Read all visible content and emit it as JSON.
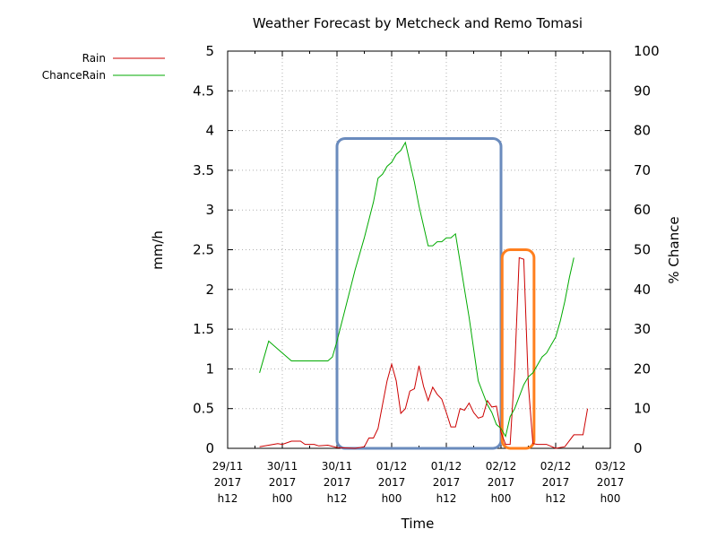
{
  "chart_data": {
    "type": "line",
    "title": "Weather Forecast by Metcheck and Remo Tomasi",
    "xlabel": "Time",
    "ylabel": "mm/h",
    "y2label": "% Chance",
    "ylim": [
      0,
      5
    ],
    "y2lim": [
      0,
      100
    ],
    "yticks": [
      "0",
      "0.5",
      "1",
      "1.5",
      "2",
      "2.5",
      "3",
      "3.5",
      "4",
      "4.5",
      "5"
    ],
    "y2ticks": [
      "0",
      "10",
      "20",
      "30",
      "40",
      "50",
      "60",
      "70",
      "80",
      "90",
      "100"
    ],
    "xlim": [
      "2017-11-29 12:00",
      "2017-12-03 00:00"
    ],
    "xticks": [
      {
        "date": "2017-11-29 12:00",
        "label": [
          "29/11",
          "2017",
          "h12"
        ]
      },
      {
        "date": "2017-11-30 00:00",
        "label": [
          "30/11",
          "2017",
          "h00"
        ]
      },
      {
        "date": "2017-11-30 12:00",
        "label": [
          "30/11",
          "2017",
          "h12"
        ]
      },
      {
        "date": "2017-12-01 00:00",
        "label": [
          "01/12",
          "2017",
          "h00"
        ]
      },
      {
        "date": "2017-12-01 12:00",
        "label": [
          "01/12",
          "2017",
          "h12"
        ]
      },
      {
        "date": "2017-12-02 00:00",
        "label": [
          "02/12",
          "2017",
          "h00"
        ]
      },
      {
        "date": "2017-12-02 12:00",
        "label": [
          "02/12",
          "2017",
          "h12"
        ]
      },
      {
        "date": "2017-12-03 00:00",
        "label": [
          "03/12",
          "2017",
          "h00"
        ]
      }
    ],
    "grid": true,
    "legend_position": "top-left",
    "series": [
      {
        "name": "Rain",
        "axis": "left",
        "color": "#cc0000",
        "points": [
          [
            "2017-11-29 19:00",
            0.02
          ],
          [
            "2017-11-29 21:00",
            0.04
          ],
          [
            "2017-11-29 23:00",
            0.06
          ],
          [
            "2017-11-30 00:00",
            0.05
          ],
          [
            "2017-11-30 02:00",
            0.09
          ],
          [
            "2017-11-30 04:00",
            0.09
          ],
          [
            "2017-11-30 05:00",
            0.05
          ],
          [
            "2017-11-30 07:00",
            0.05
          ],
          [
            "2017-11-30 08:00",
            0.03
          ],
          [
            "2017-11-30 10:00",
            0.04
          ],
          [
            "2017-11-30 12:00",
            0.01
          ],
          [
            "2017-11-30 16:00",
            0.0
          ],
          [
            "2017-11-30 18:00",
            0.02
          ],
          [
            "2017-11-30 19:00",
            0.13
          ],
          [
            "2017-11-30 20:00",
            0.13
          ],
          [
            "2017-11-30 21:00",
            0.25
          ],
          [
            "2017-11-30 22:00",
            0.55
          ],
          [
            "2017-11-30 23:00",
            0.85
          ],
          [
            "2017-12-01 00:00",
            1.06
          ],
          [
            "2017-12-01 01:00",
            0.85
          ],
          [
            "2017-12-01 02:00",
            0.44
          ],
          [
            "2017-12-01 03:00",
            0.5
          ],
          [
            "2017-12-01 04:00",
            0.72
          ],
          [
            "2017-12-01 05:00",
            0.75
          ],
          [
            "2017-12-01 06:00",
            1.04
          ],
          [
            "2017-12-01 07:00",
            0.78
          ],
          [
            "2017-12-01 08:00",
            0.6
          ],
          [
            "2017-12-01 09:00",
            0.77
          ],
          [
            "2017-12-01 10:00",
            0.68
          ],
          [
            "2017-12-01 11:00",
            0.62
          ],
          [
            "2017-12-01 12:00",
            0.45
          ],
          [
            "2017-12-01 13:00",
            0.27
          ],
          [
            "2017-12-01 14:00",
            0.27
          ],
          [
            "2017-12-01 15:00",
            0.5
          ],
          [
            "2017-12-01 16:00",
            0.48
          ],
          [
            "2017-12-01 17:00",
            0.57
          ],
          [
            "2017-12-01 18:00",
            0.45
          ],
          [
            "2017-12-01 19:00",
            0.38
          ],
          [
            "2017-12-01 20:00",
            0.4
          ],
          [
            "2017-12-01 21:00",
            0.6
          ],
          [
            "2017-12-01 22:00",
            0.52
          ],
          [
            "2017-12-01 23:00",
            0.53
          ],
          [
            "2017-12-02 00:00",
            0.2
          ],
          [
            "2017-12-02 01:00",
            0.05
          ],
          [
            "2017-12-02 02:00",
            0.05
          ],
          [
            "2017-12-02 03:00",
            1.0
          ],
          [
            "2017-12-02 04:00",
            2.4
          ],
          [
            "2017-12-02 05:00",
            2.38
          ],
          [
            "2017-12-02 06:00",
            0.8
          ],
          [
            "2017-12-02 07:00",
            0.06
          ],
          [
            "2017-12-02 08:00",
            0.05
          ],
          [
            "2017-12-02 10:00",
            0.05
          ],
          [
            "2017-12-02 12:00",
            0.0
          ],
          [
            "2017-12-02 14:00",
            0.02
          ],
          [
            "2017-12-02 16:00",
            0.17
          ],
          [
            "2017-12-02 18:00",
            0.17
          ],
          [
            "2017-12-02 19:00",
            0.5
          ]
        ]
      },
      {
        "name": "ChanceRain",
        "axis": "right",
        "color": "#00aa00",
        "points": [
          [
            "2017-11-29 19:00",
            19
          ],
          [
            "2017-11-29 21:00",
            27
          ],
          [
            "2017-11-29 23:00",
            25
          ],
          [
            "2017-11-30 02:00",
            22
          ],
          [
            "2017-11-30 04:00",
            22
          ],
          [
            "2017-11-30 08:00",
            22
          ],
          [
            "2017-11-30 10:00",
            22
          ],
          [
            "2017-11-30 11:00",
            23
          ],
          [
            "2017-11-30 12:00",
            27
          ],
          [
            "2017-11-30 14:00",
            36
          ],
          [
            "2017-11-30 16:00",
            45
          ],
          [
            "2017-11-30 18:00",
            53
          ],
          [
            "2017-11-30 20:00",
            62
          ],
          [
            "2017-11-30 21:00",
            68
          ],
          [
            "2017-11-30 22:00",
            69
          ],
          [
            "2017-11-30 23:00",
            71
          ],
          [
            "2017-12-01 00:00",
            72
          ],
          [
            "2017-12-01 01:00",
            74
          ],
          [
            "2017-12-01 02:00",
            75
          ],
          [
            "2017-12-01 03:00",
            77
          ],
          [
            "2017-12-01 04:00",
            72
          ],
          [
            "2017-12-01 05:00",
            67
          ],
          [
            "2017-12-01 06:00",
            61
          ],
          [
            "2017-12-01 07:00",
            56
          ],
          [
            "2017-12-01 08:00",
            51
          ],
          [
            "2017-12-01 09:00",
            51
          ],
          [
            "2017-12-01 10:00",
            52
          ],
          [
            "2017-12-01 11:00",
            52
          ],
          [
            "2017-12-01 12:00",
            53
          ],
          [
            "2017-12-01 13:00",
            53
          ],
          [
            "2017-12-01 14:00",
            54
          ],
          [
            "2017-12-01 15:00",
            47
          ],
          [
            "2017-12-01 16:00",
            40
          ],
          [
            "2017-12-01 17:00",
            33
          ],
          [
            "2017-12-01 18:00",
            25
          ],
          [
            "2017-12-01 19:00",
            17
          ],
          [
            "2017-12-01 20:00",
            14
          ],
          [
            "2017-12-01 21:00",
            11
          ],
          [
            "2017-12-01 22:00",
            9
          ],
          [
            "2017-12-01 23:00",
            6
          ],
          [
            "2017-12-02 00:00",
            5
          ],
          [
            "2017-12-02 01:00",
            3
          ],
          [
            "2017-12-02 02:00",
            8
          ],
          [
            "2017-12-02 03:00",
            10
          ],
          [
            "2017-12-02 04:00",
            13
          ],
          [
            "2017-12-02 05:00",
            16
          ],
          [
            "2017-12-02 06:00",
            18
          ],
          [
            "2017-12-02 07:00",
            19
          ],
          [
            "2017-12-02 08:00",
            21
          ],
          [
            "2017-12-02 09:00",
            23
          ],
          [
            "2017-12-02 10:00",
            24
          ],
          [
            "2017-12-02 11:00",
            26
          ],
          [
            "2017-12-02 12:00",
            28
          ],
          [
            "2017-12-02 13:00",
            32
          ],
          [
            "2017-12-02 14:00",
            37
          ],
          [
            "2017-12-02 15:00",
            43
          ],
          [
            "2017-12-02 16:00",
            48
          ]
        ]
      }
    ],
    "annotations": [
      {
        "shape": "rounded-rect",
        "color": "#6a8bbd",
        "x": [
          "2017-11-30 12:00",
          "2017-12-02 00:00"
        ],
        "y": [
          0,
          3.9
        ]
      },
      {
        "shape": "rounded-rect",
        "color": "#ff7f1e",
        "x": [
          "2017-12-02 00:15",
          "2017-12-02 07:15"
        ],
        "y": [
          0,
          2.5
        ]
      }
    ]
  }
}
